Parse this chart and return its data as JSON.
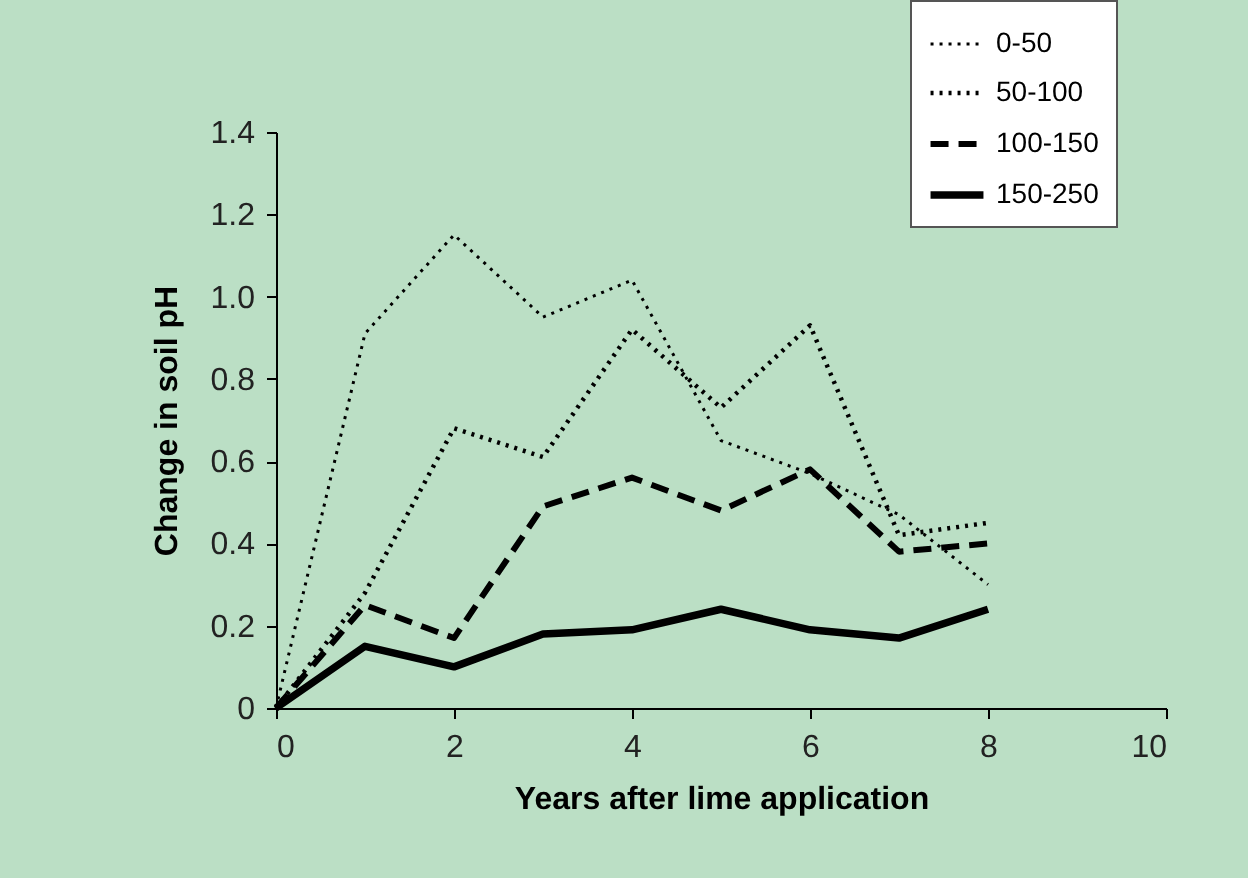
{
  "chart_data": {
    "type": "line",
    "xlabel": "Years after lime application",
    "ylabel": "Change in soil pH",
    "x": [
      0,
      1,
      2,
      3,
      4,
      5,
      6,
      7,
      8
    ],
    "series": [
      {
        "name": "0-50",
        "color": "#000000",
        "line_style": "dotted",
        "values": [
          0,
          0.91,
          1.15,
          0.95,
          1.04,
          0.65,
          0.57,
          0.47,
          0.3
        ]
      },
      {
        "name": "50-100",
        "color": "#000000",
        "line_style": "dotted",
        "values": [
          0,
          0.28,
          0.68,
          0.61,
          0.92,
          0.73,
          0.93,
          0.42,
          0.45
        ]
      },
      {
        "name": "100-150",
        "color": "#000000",
        "line_style": "dashed",
        "values": [
          0,
          0.25,
          0.17,
          0.49,
          0.56,
          0.48,
          0.58,
          0.38,
          0.4
        ]
      },
      {
        "name": "150-250",
        "color": "#000000",
        "line_style": "solid",
        "values": [
          0,
          0.15,
          0.1,
          0.18,
          0.19,
          0.24,
          0.19,
          0.17,
          0.24
        ]
      }
    ],
    "xlim": [
      0,
      10
    ],
    "xticks": [
      0,
      2,
      4,
      6,
      8,
      10
    ],
    "ylim": [
      0,
      1.4
    ],
    "yticks": [
      {
        "value": 0,
        "label": "0"
      },
      {
        "value": 0.2,
        "label": "0.2"
      },
      {
        "value": 0.4,
        "label": "0.4"
      },
      {
        "value": 0.6,
        "label": "0.6"
      },
      {
        "value": 0.8,
        "label": "0.8"
      },
      {
        "value": 1.0,
        "label": "1.0"
      },
      {
        "value": 1.2,
        "label": "1.2"
      },
      {
        "value": 1.4,
        "label": "1.4"
      }
    ],
    "grid": false,
    "legend": "top right",
    "marker": "none"
  }
}
